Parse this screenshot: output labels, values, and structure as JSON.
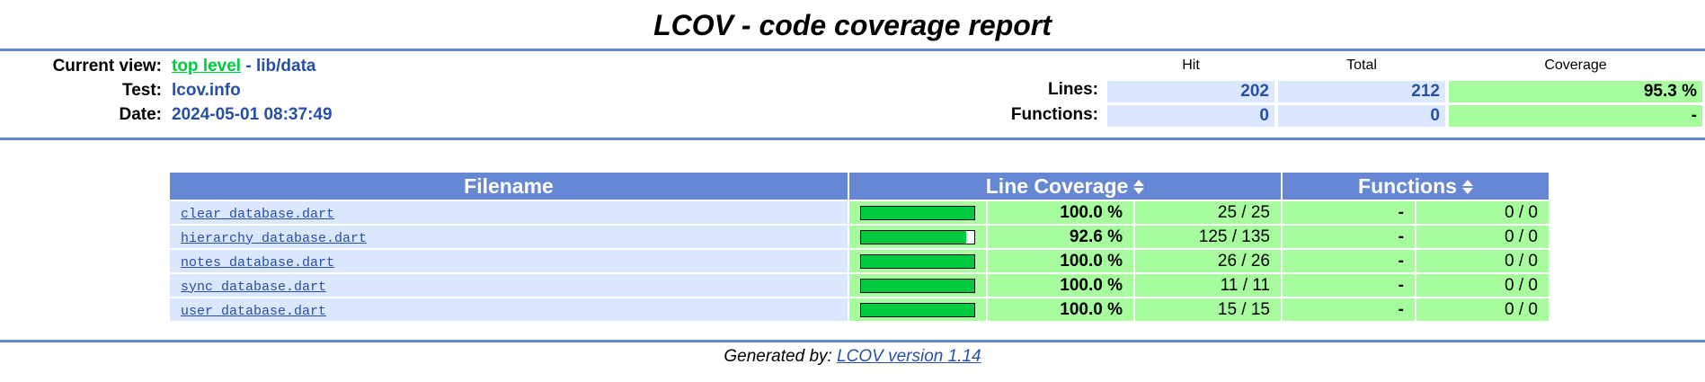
{
  "title": "LCOV - code coverage report",
  "header": {
    "current_view_label": "Current view:",
    "top_level_link": "top level",
    "separator": " - ",
    "current_dir": "lib/data",
    "test_label": "Test:",
    "test_value": "lcov.info",
    "date_label": "Date:",
    "date_value": "2024-05-01 08:37:49"
  },
  "summary": {
    "col_hit": "Hit",
    "col_total": "Total",
    "col_coverage": "Coverage",
    "lines": {
      "label": "Lines:",
      "hit": "202",
      "total": "212",
      "coverage": "95.3 %"
    },
    "functions": {
      "label": "Functions:",
      "hit": "0",
      "total": "0",
      "coverage": "-"
    }
  },
  "table": {
    "col_filename": "Filename",
    "col_line_coverage": "Line Coverage",
    "col_functions": "Functions",
    "rows": [
      {
        "file": "clear_database.dart",
        "fill": 1.0,
        "pct": "100.0 %",
        "count": "25 / 25",
        "fpct": "-",
        "fcount": "0 / 0"
      },
      {
        "file": "hierarchy_database.dart",
        "fill": 0.926,
        "pct": "92.6 %",
        "count": "125 / 135",
        "fpct": "-",
        "fcount": "0 / 0"
      },
      {
        "file": "notes_database.dart",
        "fill": 1.0,
        "pct": "100.0 %",
        "count": "26 / 26",
        "fpct": "-",
        "fcount": "0 / 0"
      },
      {
        "file": "sync_database.dart",
        "fill": 1.0,
        "pct": "100.0 %",
        "count": "11 / 11",
        "fpct": "-",
        "fcount": "0 / 0"
      },
      {
        "file": "user_database.dart",
        "fill": 1.0,
        "pct": "100.0 %",
        "count": "15 / 15",
        "fpct": "-",
        "fcount": "0 / 0"
      }
    ]
  },
  "footer": {
    "prefix": "Generated by: ",
    "link": "LCOV version 1.14"
  },
  "colors": {
    "rule": "#6688d4",
    "header_blue": "#dae7fe",
    "hi_green": "#a7fc9d",
    "bar_green": "#00cb40",
    "link_blue": "#284fa8"
  }
}
